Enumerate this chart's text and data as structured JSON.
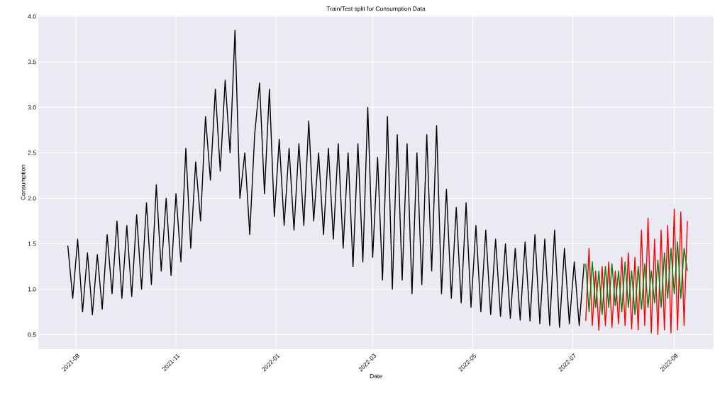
{
  "chart_data": {
    "type": "line",
    "title": "Train/Test split for Consumption Data",
    "xlabel": "Date",
    "ylabel": "Consumption",
    "xlim": [
      "2021-08-09",
      "2022-09-25"
    ],
    "ylim": [
      0.34,
      4.01
    ],
    "xticks": [
      "2021-09",
      "2021-11",
      "2022-01",
      "2022-03",
      "2022-05",
      "2022-07",
      "2022-09"
    ],
    "yticks": [
      0.5,
      {
        "value": 1,
        "label": "1.0"
      },
      1.5,
      {
        "value": 2,
        "label": "2.0"
      },
      2.5,
      {
        "value": 3,
        "label": "3.0"
      },
      3.5,
      {
        "value": 4,
        "label": "4.0"
      }
    ],
    "grid": true,
    "legend": false,
    "marker": "none",
    "line_style": "solid",
    "series": [
      {
        "color": "#000000",
        "x": [
          "2021-08-27",
          "2021-08-30",
          "2021-09-02",
          "2021-09-05",
          "2021-09-08",
          "2021-09-11",
          "2021-09-14",
          "2021-09-17",
          "2021-09-20",
          "2021-09-23",
          "2021-09-26",
          "2021-09-29",
          "2021-10-02",
          "2021-10-05",
          "2021-10-08",
          "2021-10-11",
          "2021-10-14",
          "2021-10-17",
          "2021-10-20",
          "2021-10-23",
          "2021-10-26",
          "2021-10-29",
          "2021-11-01",
          "2021-11-04",
          "2021-11-07",
          "2021-11-10",
          "2021-11-13",
          "2021-11-16",
          "2021-11-19",
          "2021-11-22",
          "2021-11-25",
          "2021-11-28",
          "2021-12-01",
          "2021-12-04",
          "2021-12-07",
          "2021-12-10",
          "2021-12-13",
          "2021-12-16",
          "2021-12-19",
          "2021-12-22",
          "2021-12-25",
          "2021-12-28",
          "2021-12-31",
          "2022-01-03",
          "2022-01-06",
          "2022-01-09",
          "2022-01-12",
          "2022-01-15",
          "2022-01-18",
          "2022-01-21",
          "2022-01-24",
          "2022-01-27",
          "2022-01-30",
          "2022-02-02",
          "2022-02-05",
          "2022-02-08",
          "2022-02-11",
          "2022-02-14",
          "2022-02-17",
          "2022-02-20",
          "2022-02-23",
          "2022-02-26",
          "2022-03-01",
          "2022-03-04",
          "2022-03-07",
          "2022-03-10",
          "2022-03-13",
          "2022-03-16",
          "2022-03-19",
          "2022-03-22",
          "2022-03-25",
          "2022-03-28",
          "2022-03-31",
          "2022-04-03",
          "2022-04-06",
          "2022-04-09",
          "2022-04-12",
          "2022-04-15",
          "2022-04-18",
          "2022-04-21",
          "2022-04-24",
          "2022-04-27",
          "2022-04-30",
          "2022-05-03",
          "2022-05-06",
          "2022-05-09",
          "2022-05-12",
          "2022-05-15",
          "2022-05-18",
          "2022-05-21",
          "2022-05-24",
          "2022-05-27",
          "2022-05-30",
          "2022-06-02",
          "2022-06-05",
          "2022-06-08",
          "2022-06-11",
          "2022-06-14",
          "2022-06-17",
          "2022-06-20",
          "2022-06-23",
          "2022-06-26",
          "2022-06-29",
          "2022-07-02",
          "2022-07-05",
          "2022-07-08"
        ],
        "values": [
          1.48,
          0.9,
          1.55,
          0.75,
          1.4,
          0.72,
          1.38,
          0.78,
          1.6,
          0.95,
          1.75,
          0.9,
          1.7,
          0.92,
          1.82,
          1.0,
          1.95,
          1.05,
          2.15,
          1.2,
          2.0,
          1.15,
          2.05,
          1.3,
          2.55,
          1.45,
          2.4,
          1.75,
          2.9,
          2.2,
          3.2,
          2.3,
          3.3,
          2.5,
          3.85,
          2.0,
          2.5,
          1.6,
          2.7,
          3.27,
          2.05,
          3.2,
          1.8,
          2.65,
          1.7,
          2.55,
          1.65,
          2.6,
          1.7,
          2.85,
          1.75,
          2.5,
          1.6,
          2.55,
          1.55,
          2.6,
          1.45,
          2.5,
          1.25,
          2.6,
          1.3,
          3.0,
          1.35,
          2.45,
          1.1,
          2.9,
          1.0,
          2.7,
          1.1,
          2.6,
          0.95,
          2.5,
          1.05,
          2.7,
          1.2,
          2.8,
          0.95,
          2.1,
          0.9,
          1.9,
          0.85,
          1.95,
          0.8,
          1.7,
          0.75,
          1.65,
          0.72,
          1.55,
          0.7,
          1.5,
          0.68,
          1.45,
          0.66,
          1.52,
          0.65,
          1.6,
          0.62,
          1.55,
          0.6,
          1.65,
          0.58,
          1.45,
          0.62,
          1.3,
          0.6,
          1.28
        ]
      },
      {
        "color": "#ff0000",
        "x": [
          "2022-07-09",
          "2022-07-11",
          "2022-07-13",
          "2022-07-15",
          "2022-07-17",
          "2022-07-19",
          "2022-07-21",
          "2022-07-23",
          "2022-07-25",
          "2022-07-27",
          "2022-07-29",
          "2022-07-31",
          "2022-08-02",
          "2022-08-04",
          "2022-08-06",
          "2022-08-08",
          "2022-08-10",
          "2022-08-12",
          "2022-08-14",
          "2022-08-16",
          "2022-08-18",
          "2022-08-20",
          "2022-08-22",
          "2022-08-24",
          "2022-08-26",
          "2022-08-28",
          "2022-08-30",
          "2022-09-01",
          "2022-09-03",
          "2022-09-05",
          "2022-09-07",
          "2022-09-09"
        ],
        "values": [
          0.65,
          1.45,
          0.6,
          1.2,
          0.55,
          1.25,
          0.6,
          1.3,
          0.58,
          1.2,
          0.62,
          1.35,
          0.6,
          1.4,
          0.56,
          1.35,
          0.55,
          1.65,
          0.6,
          1.78,
          0.52,
          1.55,
          0.5,
          1.65,
          0.55,
          1.7,
          0.52,
          1.88,
          0.55,
          1.85,
          0.6,
          1.75
        ]
      },
      {
        "color": "#008000",
        "x": [
          "2022-07-09",
          "2022-07-11",
          "2022-07-13",
          "2022-07-15",
          "2022-07-17",
          "2022-07-19",
          "2022-07-21",
          "2022-07-23",
          "2022-07-25",
          "2022-07-27",
          "2022-07-29",
          "2022-07-31",
          "2022-08-02",
          "2022-08-04",
          "2022-08-06",
          "2022-08-08",
          "2022-08-10",
          "2022-08-12",
          "2022-08-14",
          "2022-08-16",
          "2022-08-18",
          "2022-08-20",
          "2022-08-22",
          "2022-08-24",
          "2022-08-26",
          "2022-08-28",
          "2022-08-30",
          "2022-09-01",
          "2022-09-03",
          "2022-09-05",
          "2022-09-07",
          "2022-09-09"
        ],
        "values": [
          1.28,
          0.75,
          1.3,
          0.8,
          1.2,
          0.72,
          1.25,
          0.8,
          1.28,
          0.82,
          1.2,
          0.75,
          1.3,
          0.8,
          1.2,
          0.72,
          1.25,
          0.78,
          1.28,
          0.8,
          1.2,
          0.85,
          1.32,
          0.8,
          1.4,
          0.9,
          1.45,
          0.95,
          1.52,
          0.9,
          1.45,
          1.2
        ]
      }
    ]
  }
}
